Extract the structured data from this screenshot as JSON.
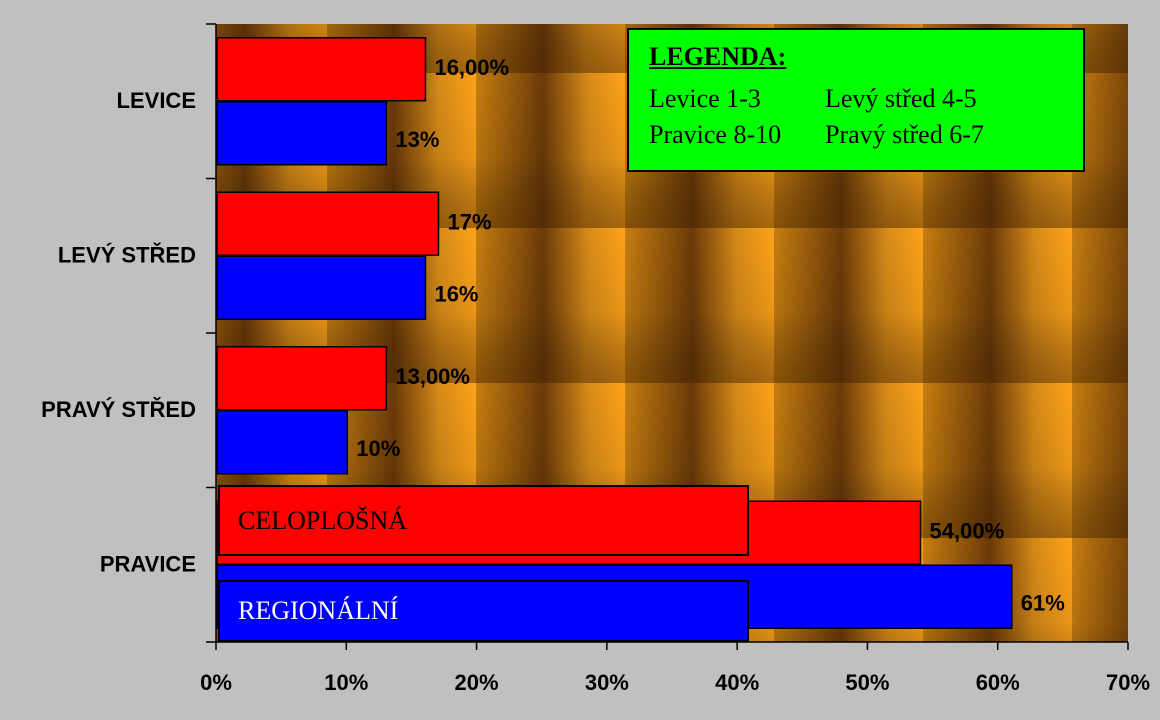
{
  "legend": {
    "title": "LEGENDA:",
    "items": [
      "Levice 1-3",
      "Levý střed 4-5",
      "Pravice 8-10",
      "Pravý střed 6-7"
    ]
  },
  "series_boxes": {
    "celoplosna": "CELOPLOŠNÁ",
    "regionalni": "REGIONÁLNÍ"
  },
  "colors": {
    "celoplosna": "#ff0000",
    "regionalni": "#0000ff",
    "legend_bg": "#00ff00",
    "page_bg": "#c0c0c0"
  },
  "chart_data": {
    "type": "bar",
    "orientation": "horizontal",
    "categories": [
      "LEVICE",
      "LEVÝ STŘED",
      "PRAVÝ STŘED",
      "PRAVICE"
    ],
    "series": [
      {
        "name": "CELOPLOŠNÁ",
        "values": [
          16,
          17,
          13,
          54
        ],
        "labels": [
          "16,00%",
          "17%",
          "13,00%",
          "54,00%"
        ]
      },
      {
        "name": "REGIONÁLNÍ",
        "values": [
          13,
          16,
          10,
          61
        ],
        "labels": [
          "13%",
          "16%",
          "10%",
          "61%"
        ]
      }
    ],
    "xlim": [
      0,
      70
    ],
    "xticks": [
      "0%",
      "10%",
      "20%",
      "30%",
      "40%",
      "50%",
      "60%",
      "70%"
    ],
    "legend_position": "top-right"
  }
}
